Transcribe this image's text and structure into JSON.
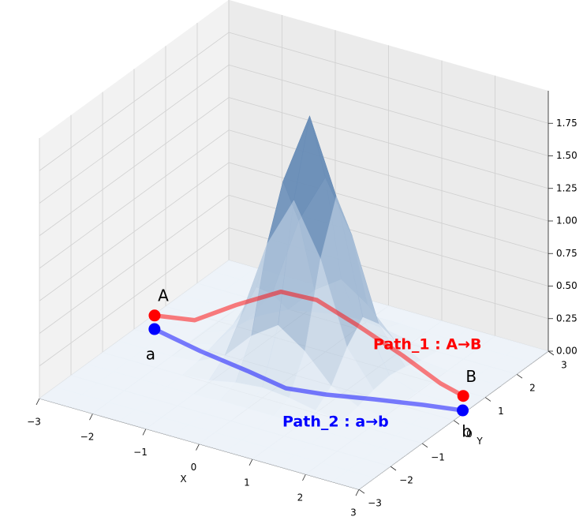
{
  "chart_data": {
    "type": "surface3d",
    "xlabel": "X",
    "ylabel": "Y",
    "xlim": [
      -3,
      3
    ],
    "ylim": [
      -3,
      3
    ],
    "zlim": [
      0,
      2.0
    ],
    "xticks": [
      {
        "value": -3,
        "label": "−3"
      },
      {
        "value": -2,
        "label": "−2"
      },
      {
        "value": -1,
        "label": "−1"
      },
      0,
      1,
      2,
      3
    ],
    "yticks": [
      {
        "value": -3,
        "label": "−3"
      },
      {
        "value": -2,
        "label": "−2"
      },
      {
        "value": -1,
        "label": "−1"
      },
      0,
      1,
      2,
      3
    ],
    "zticks": [
      {
        "value": 0,
        "label": "0.00"
      },
      {
        "value": 0.25,
        "label": "0.25"
      },
      {
        "value": 0.5,
        "label": "0.50"
      },
      {
        "value": 0.75,
        "label": "0.75"
      },
      {
        "value": 1.0,
        "label": "1.00"
      },
      {
        "value": 1.25,
        "label": "1.25"
      },
      {
        "value": 1.5,
        "label": "1.50"
      },
      {
        "value": 1.75,
        "label": "1.75"
      }
    ],
    "grid": true,
    "surface": {
      "x": [
        -3,
        -2.5,
        -2,
        -1.5,
        -1,
        -0.5,
        0,
        0.5,
        1,
        1.5,
        2,
        2.5,
        3
      ],
      "y": [
        -3,
        -2.5,
        -2,
        -1.5,
        -1,
        -0.5,
        0,
        0.5,
        1,
        1.5,
        2,
        2.5,
        3
      ],
      "z": [
        [
          0,
          0,
          0,
          0,
          0,
          0,
          0,
          0,
          0,
          0,
          0,
          0,
          0
        ],
        [
          0,
          0,
          0,
          0,
          0,
          0,
          0,
          0,
          0,
          0,
          0,
          0,
          0
        ],
        [
          0,
          0,
          0,
          0,
          0,
          0,
          0,
          0,
          0,
          0,
          0,
          0,
          0
        ],
        [
          0,
          0,
          0,
          0,
          0,
          0.01,
          0.01,
          0.01,
          0,
          0,
          0,
          0,
          0
        ],
        [
          0,
          0,
          0,
          0,
          0.02,
          0.06,
          0.08,
          0.06,
          0.02,
          0,
          0,
          0,
          0
        ],
        [
          0,
          0,
          0,
          0.02,
          0.12,
          0.33,
          0.47,
          0.33,
          0.12,
          0.02,
          0,
          0,
          0
        ],
        [
          0,
          0,
          0.01,
          0.06,
          0.33,
          0.95,
          1.34,
          0.95,
          0.33,
          0.06,
          0.01,
          0,
          0
        ],
        [
          0,
          0,
          0.01,
          0.08,
          0.47,
          1.34,
          1.9,
          1.34,
          0.47,
          0.08,
          0.01,
          0,
          0
        ],
        [
          0,
          0,
          0.01,
          0.06,
          0.33,
          0.95,
          1.34,
          0.95,
          0.33,
          0.06,
          0.01,
          0,
          0
        ],
        [
          0,
          0,
          0,
          0.02,
          0.12,
          0.33,
          0.47,
          0.33,
          0.12,
          0.02,
          0,
          0,
          0
        ],
        [
          0,
          0,
          0,
          0,
          0.02,
          0.06,
          0.08,
          0.06,
          0.02,
          0,
          0,
          0,
          0
        ],
        [
          0,
          0,
          0,
          0,
          0,
          0.01,
          0.01,
          0.01,
          0,
          0,
          0,
          0,
          0
        ],
        [
          0,
          0,
          0,
          0,
          0,
          0,
          0,
          0,
          0,
          0,
          0,
          0,
          0
        ]
      ]
    },
    "series": [
      {
        "name": "Path_1 : A→B",
        "color": "#ff0000",
        "start_label": "A",
        "end_label": "B",
        "x": [
          -2.74,
          -2.11,
          -1.59,
          -0.99,
          -0.35,
          0.4,
          1.36,
          2.38,
          2.92
        ],
        "y": [
          0.21,
          0.42,
          0.86,
          1.26,
          1.32,
          1.31,
          1.16,
          0.63,
          0.44
        ],
        "z": [
          0.1,
          0.1,
          0.2,
          0.3,
          0.3,
          0.2,
          0.1,
          0.1,
          0.1
        ]
      },
      {
        "name": "Path_2 : a→b",
        "color": "#0000ff",
        "start_label": "a",
        "end_label": "b",
        "x": [
          -2.73,
          -1.7,
          -0.7,
          0.14,
          0.8,
          1.54,
          2.3,
          2.94
        ],
        "y": [
          0.19,
          -0.09,
          -0.29,
          -0.49,
          -0.33,
          -0.05,
          0.21,
          0.39
        ],
        "z": [
          0,
          0,
          0,
          0,
          0,
          0,
          0,
          0
        ]
      }
    ]
  }
}
